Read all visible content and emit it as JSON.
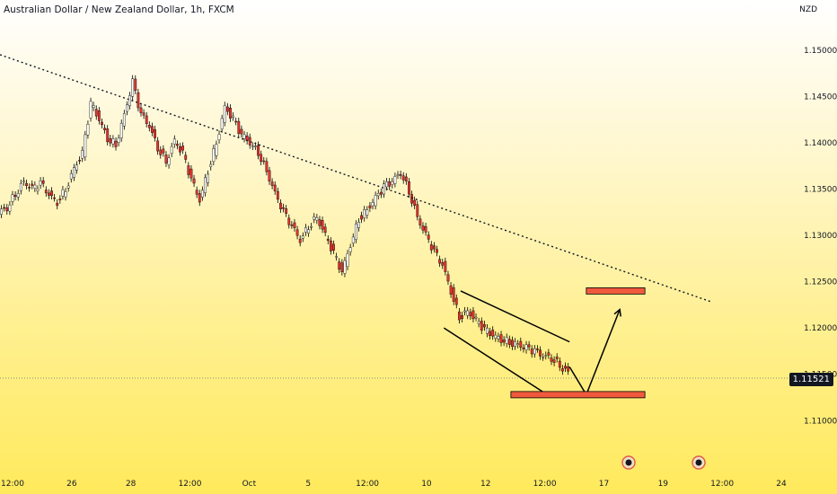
{
  "header": {
    "title": "Australian Dollar / New Zealand Dollar, 1h, FXCM",
    "currency": "NZD"
  },
  "current_price": "1.11521",
  "colors": {
    "up": "#ffffff",
    "down": "#e8322b",
    "wick": "#000000",
    "zone": "#f05a3c",
    "dotted": "#131722"
  },
  "chart_data": {
    "type": "candlestick",
    "x_axis_ticks": [
      "12:00",
      "26",
      "28",
      "12:00",
      "Oct",
      "5",
      "12:00",
      "10",
      "12",
      "12:00",
      "17",
      "19",
      "12:00",
      "24"
    ],
    "y_axis_ticks": [
      "1.15000",
      "1.14500",
      "1.14000",
      "1.13500",
      "1.13000",
      "1.12500",
      "1.12000",
      "1.11500",
      "1.11000"
    ],
    "ylim": [
      1.1045,
      1.1525
    ],
    "x": [
      0,
      95
    ],
    "close_path": [
      [
        0,
        1.1325
      ],
      [
        1,
        1.133
      ],
      [
        2,
        1.1345
      ],
      [
        3,
        1.1358
      ],
      [
        4,
        1.135
      ],
      [
        5,
        1.1356
      ],
      [
        6,
        1.1344
      ],
      [
        7,
        1.1336
      ],
      [
        8,
        1.135
      ],
      [
        9,
        1.1372
      ],
      [
        10,
        1.1388
      ],
      [
        11,
        1.1442
      ],
      [
        12,
        1.1425
      ],
      [
        13,
        1.1405
      ],
      [
        14,
        1.1398
      ],
      [
        15,
        1.143
      ],
      [
        16,
        1.1465
      ],
      [
        17,
        1.143
      ],
      [
        18,
        1.1418
      ],
      [
        19,
        1.1395
      ],
      [
        20,
        1.138
      ],
      [
        21,
        1.1402
      ],
      [
        22,
        1.1388
      ],
      [
        23,
        1.136
      ],
      [
        24,
        1.1338
      ],
      [
        25,
        1.137
      ],
      [
        26,
        1.14
      ],
      [
        27,
        1.1438
      ],
      [
        28,
        1.1425
      ],
      [
        29,
        1.1408
      ],
      [
        30,
        1.14
      ],
      [
        31,
        1.139
      ],
      [
        32,
        1.137
      ],
      [
        33,
        1.1345
      ],
      [
        34,
        1.1325
      ],
      [
        35,
        1.131
      ],
      [
        36,
        1.1295
      ],
      [
        37,
        1.131
      ],
      [
        38,
        1.132
      ],
      [
        39,
        1.13
      ],
      [
        40,
        1.128
      ],
      [
        41,
        1.126
      ],
      [
        42,
        1.129
      ],
      [
        43,
        1.1318
      ],
      [
        44,
        1.1328
      ],
      [
        45,
        1.134
      ],
      [
        46,
        1.1352
      ],
      [
        47,
        1.1358
      ],
      [
        48,
        1.1368
      ],
      [
        49,
        1.1348
      ],
      [
        50,
        1.132
      ],
      [
        51,
        1.13
      ],
      [
        52,
        1.1282
      ],
      [
        53,
        1.1268
      ],
      [
        54,
        1.124
      ],
      [
        55,
        1.1212
      ],
      [
        56,
        1.1218
      ],
      [
        57,
        1.1208
      ],
      [
        58,
        1.1198
      ],
      [
        59,
        1.1192
      ],
      [
        60,
        1.1188
      ],
      [
        61,
        1.1185
      ],
      [
        62,
        1.1182
      ],
      [
        63,
        1.1178
      ],
      [
        64,
        1.1175
      ],
      [
        65,
        1.117
      ],
      [
        66,
        1.1168
      ],
      [
        67,
        1.116
      ],
      [
        68,
        1.1152
      ]
    ],
    "annotations": {
      "trendline": [
        [
          0,
          1.1495
        ],
        [
          85,
          1.1228
        ]
      ],
      "channel_upper": [
        [
          55,
          1.124
        ],
        [
          68,
          1.1185
        ]
      ],
      "channel_lower": [
        [
          53,
          1.12
        ],
        [
          65,
          1.113
        ]
      ],
      "projection": [
        [
          68,
          1.1158
        ],
        [
          70,
          1.1128
        ],
        [
          74,
          1.122
        ]
      ],
      "target_zone": {
        "x": [
          70,
          77
        ],
        "y": 1.124
      },
      "support_zone": {
        "x": [
          61,
          77
        ],
        "y": 1.1128
      }
    }
  }
}
